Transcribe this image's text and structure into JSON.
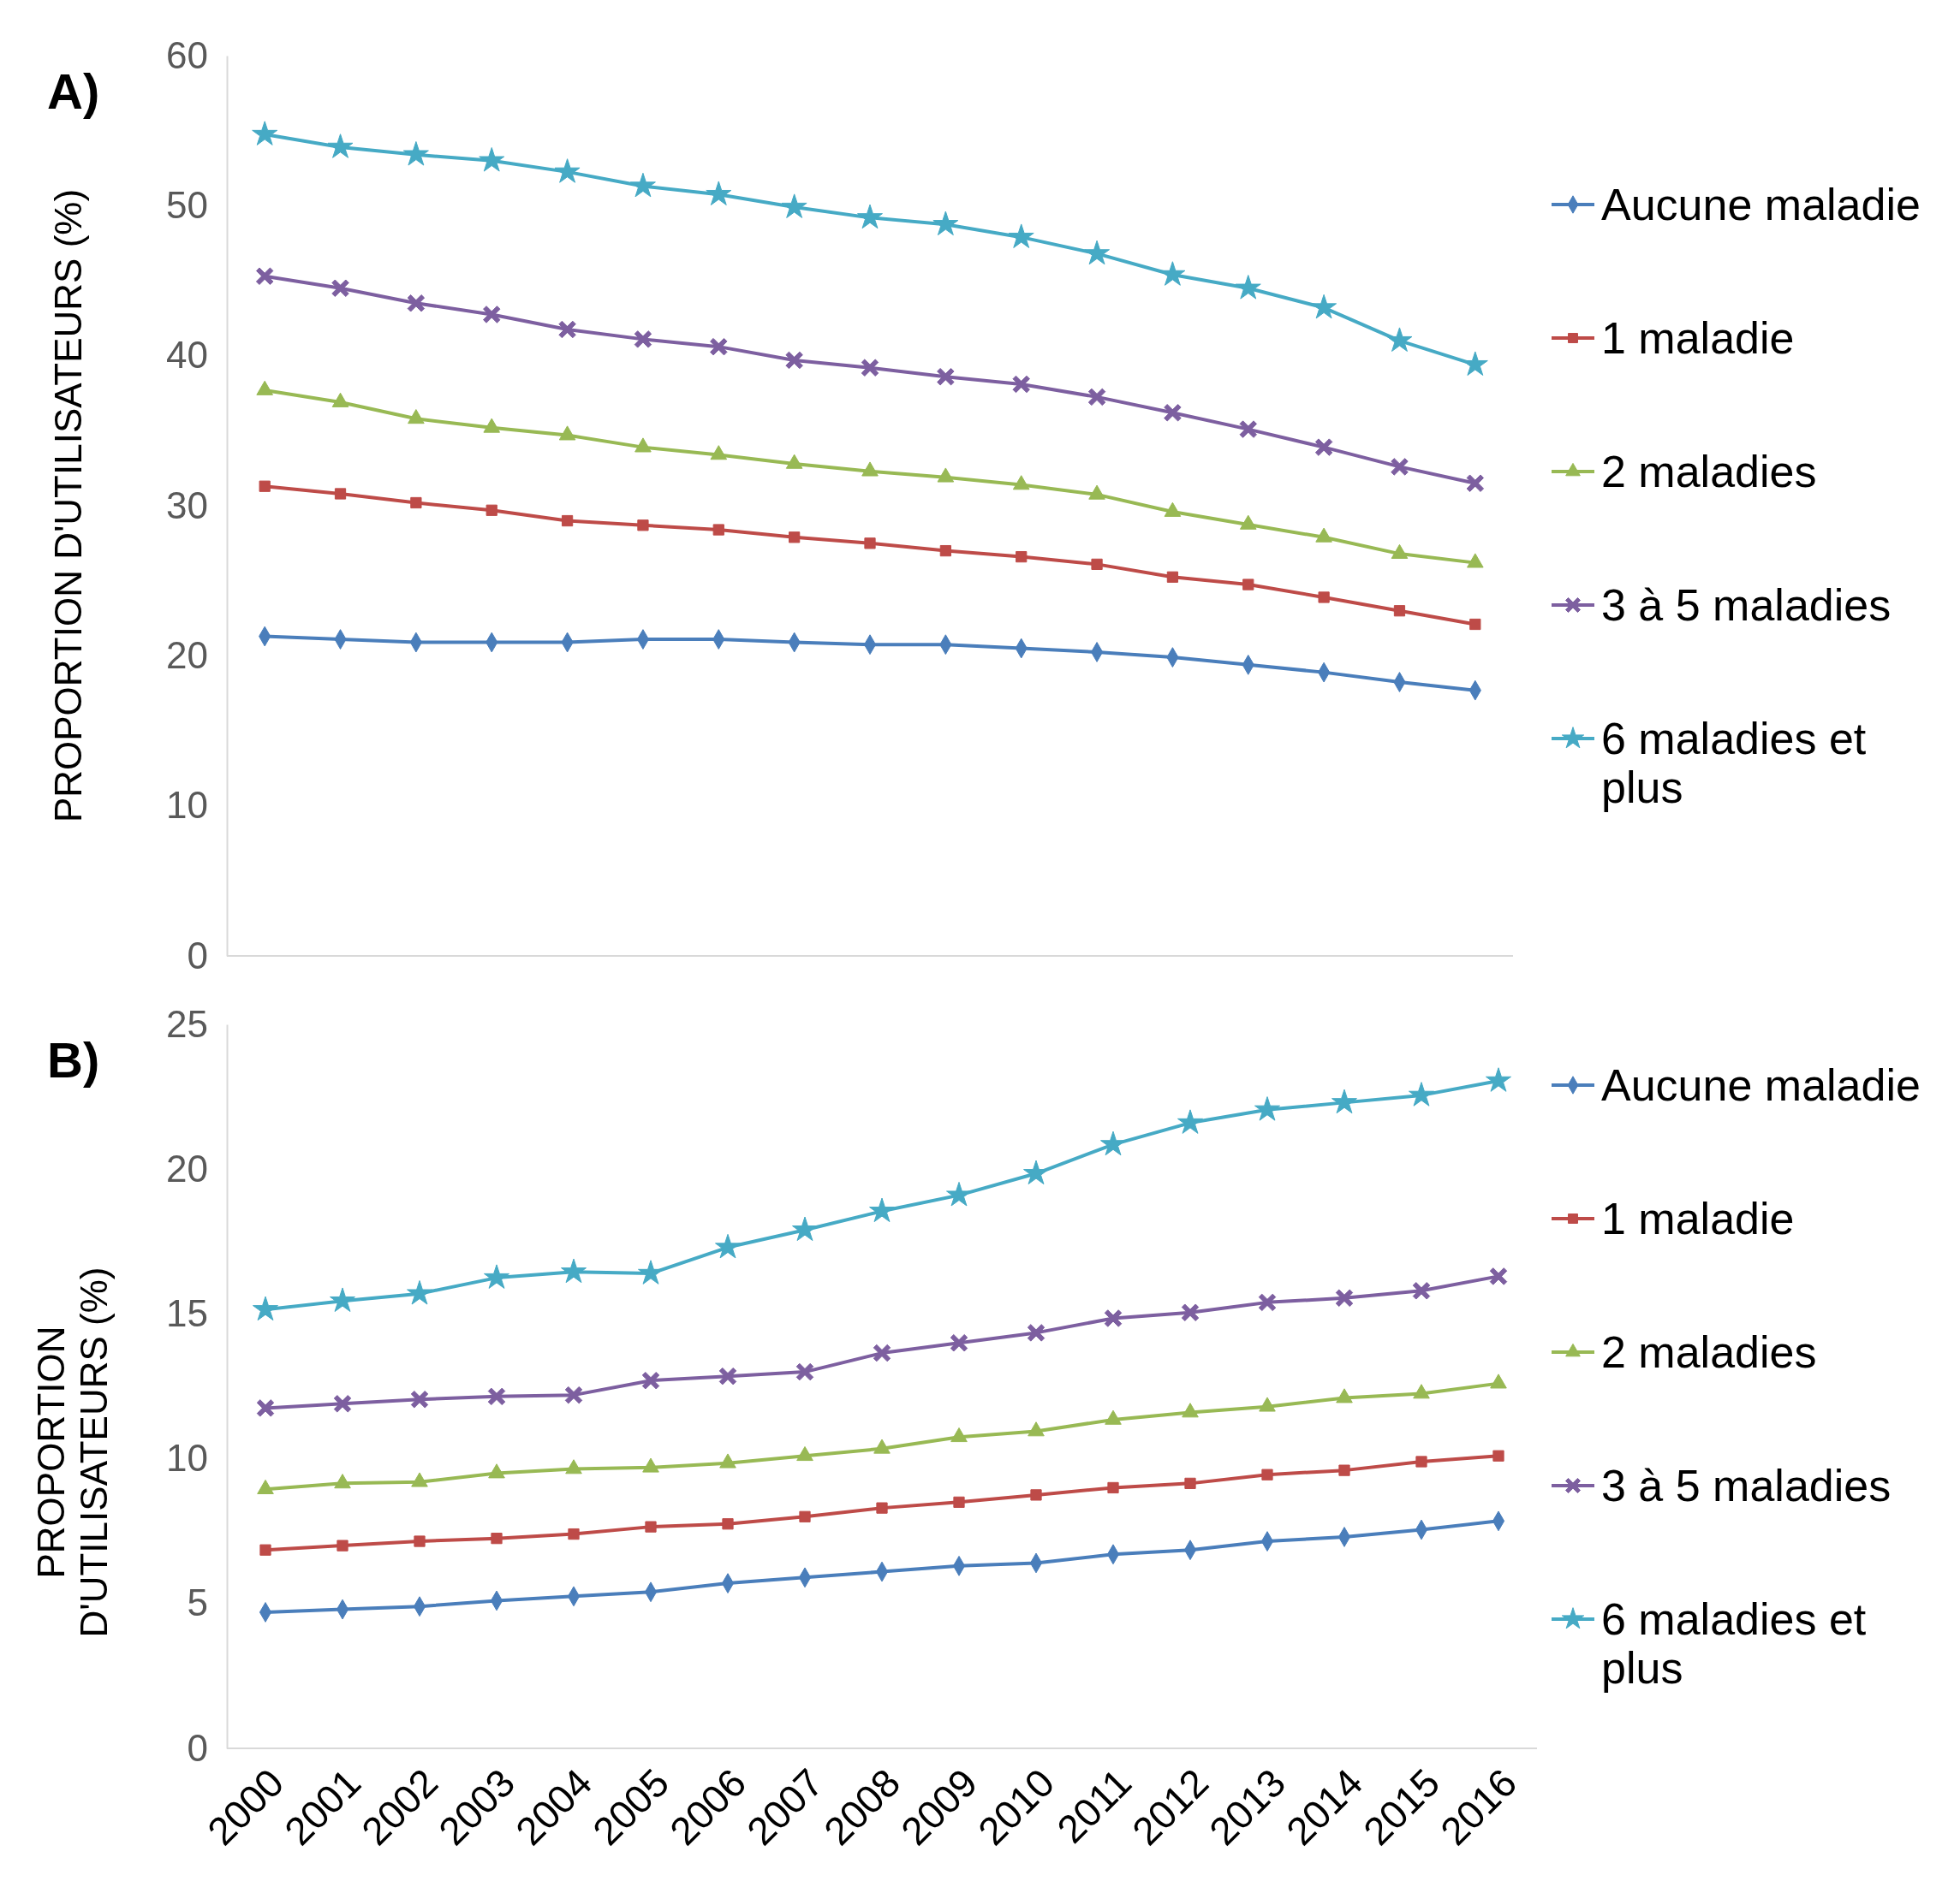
{
  "chart_data": [
    {
      "type": "line",
      "ylabel": "PROPORTION D'UTILISATEURS (%)",
      "annotations": [
        "A)"
      ],
      "categories": [
        "2000",
        "2001",
        "2002",
        "2003",
        "2004",
        "2005",
        "2006",
        "2007",
        "2008",
        "2009",
        "2010",
        "2011",
        "2012",
        "2013",
        "2014",
        "2015",
        "2016"
      ],
      "ylim": [
        0,
        60
      ],
      "yticks": [
        0,
        10,
        20,
        30,
        40,
        50,
        60
      ],
      "tick_labels": "y",
      "legend": "right",
      "grid": false,
      "series": [
        {
          "name": "Aucune maladie",
          "color": "#4a7ebb",
          "marker": "diamond",
          "values": [
            21.3,
            21.1,
            20.9,
            20.9,
            20.9,
            21.1,
            21.1,
            20.9,
            20.75,
            20.75,
            20.5,
            20.25,
            19.9,
            19.4,
            18.9,
            18.25,
            17.7
          ]
        },
        {
          "name": "1 maladie",
          "color": "#be4b48",
          "marker": "square",
          "values": [
            31.3,
            30.8,
            30.2,
            29.7,
            29.0,
            28.7,
            28.4,
            27.9,
            27.5,
            27.0,
            26.6,
            26.1,
            25.25,
            24.75,
            23.9,
            23.0,
            22.1
          ]
        },
        {
          "name": "2 maladies",
          "color": "#98b954",
          "marker": "triangle",
          "values": [
            37.7,
            36.9,
            35.8,
            35.2,
            34.7,
            33.9,
            33.4,
            32.8,
            32.3,
            31.9,
            31.4,
            30.75,
            29.6,
            28.75,
            27.9,
            26.8,
            26.2
          ]
        },
        {
          "name": "3 à 5 maladies",
          "color": "#7d5fa0",
          "marker": "cross",
          "values": [
            45.3,
            44.5,
            43.5,
            42.75,
            41.75,
            41.1,
            40.6,
            39.7,
            39.2,
            38.6,
            38.1,
            37.25,
            36.2,
            35.1,
            33.9,
            32.6,
            31.5
          ]
        },
        {
          "name": "6 maladies et plus",
          "color": "#46aac5",
          "marker": "star",
          "values": [
            54.75,
            53.9,
            53.4,
            53.0,
            52.25,
            51.3,
            50.75,
            49.9,
            49.2,
            48.75,
            47.9,
            46.8,
            45.4,
            44.5,
            43.2,
            41.0,
            39.4
          ]
        }
      ]
    },
    {
      "type": "line",
      "ylabel": "PROPORTION D'UTILISATEURS (%)",
      "annotations": [
        "B)"
      ],
      "categories": [
        "2000",
        "2001",
        "2002",
        "2003",
        "2004",
        "2005",
        "2006",
        "2007",
        "2008",
        "2009",
        "2010",
        "2011",
        "2012",
        "2013",
        "2014",
        "2015",
        "2016"
      ],
      "ylim": [
        0,
        25
      ],
      "yticks": [
        0,
        5,
        10,
        15,
        20,
        25
      ],
      "legend": "right",
      "grid": false,
      "series": [
        {
          "name": "Aucune maladie",
          "color": "#4a7ebb",
          "marker": "diamond",
          "values": [
            4.7,
            4.8,
            4.9,
            5.1,
            5.25,
            5.4,
            5.7,
            5.9,
            6.1,
            6.3,
            6.4,
            6.7,
            6.85,
            7.15,
            7.3,
            7.55,
            7.85
          ]
        },
        {
          "name": "1 maladie",
          "color": "#be4b48",
          "marker": "square",
          "values": [
            6.85,
            7.0,
            7.15,
            7.25,
            7.4,
            7.65,
            7.75,
            8.0,
            8.3,
            8.5,
            8.75,
            9.0,
            9.15,
            9.45,
            9.6,
            9.9,
            10.1
          ]
        },
        {
          "name": "2 maladies",
          "color": "#98b954",
          "marker": "triangle",
          "values": [
            8.95,
            9.15,
            9.2,
            9.5,
            9.65,
            9.7,
            9.85,
            10.1,
            10.35,
            10.75,
            10.95,
            11.35,
            11.6,
            11.8,
            12.1,
            12.25,
            12.6
          ]
        },
        {
          "name": "3 à 5 maladies",
          "color": "#7d5fa0",
          "marker": "cross",
          "values": [
            11.75,
            11.9,
            12.05,
            12.15,
            12.2,
            12.7,
            12.85,
            13.0,
            13.65,
            14.0,
            14.35,
            14.85,
            15.05,
            15.4,
            15.55,
            15.8,
            16.3
          ]
        },
        {
          "name": "6 maladies et plus",
          "color": "#46aac5",
          "marker": "star",
          "values": [
            15.15,
            15.45,
            15.7,
            16.25,
            16.45,
            16.4,
            17.3,
            17.9,
            18.55,
            19.1,
            19.85,
            20.85,
            21.6,
            22.05,
            22.3,
            22.55,
            23.05
          ]
        }
      ]
    }
  ]
}
